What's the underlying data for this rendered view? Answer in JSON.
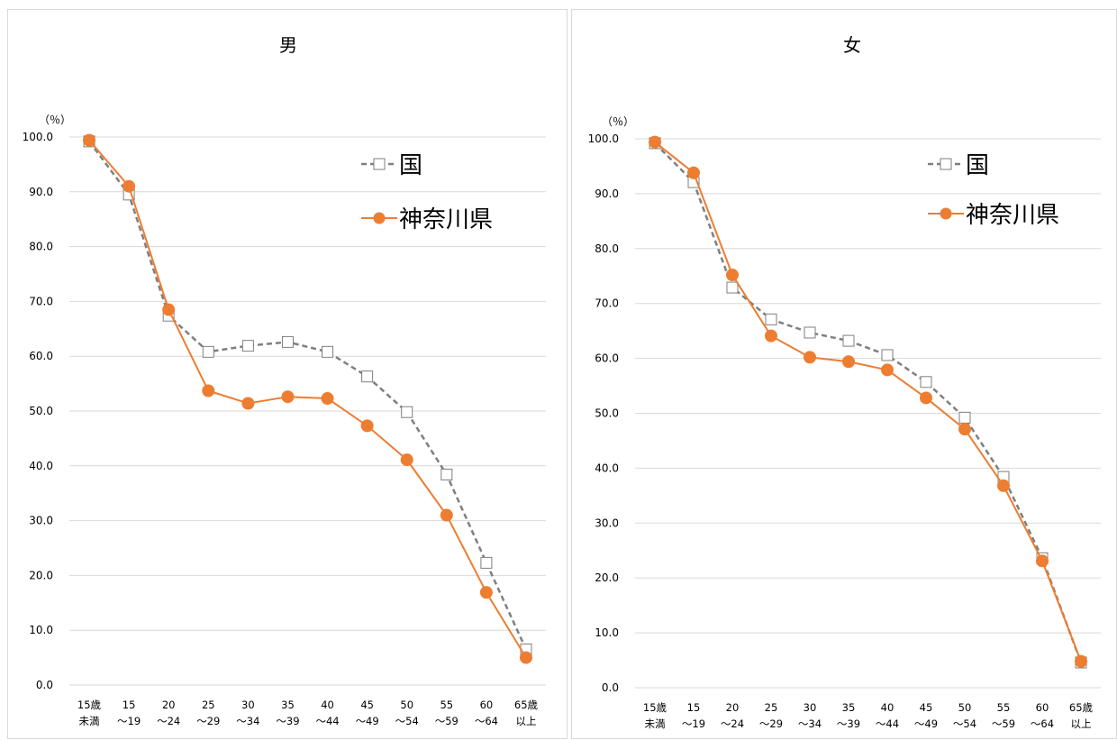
{
  "chart_data": [
    {
      "type": "line",
      "title": "男",
      "unit_label": "（％）",
      "xlabel": "",
      "ylabel": "",
      "ylim": [
        0,
        100
      ],
      "yticks": [
        "0.0",
        "10.0",
        "20.0",
        "30.0",
        "40.0",
        "50.0",
        "60.0",
        "70.0",
        "80.0",
        "90.0",
        "100.0"
      ],
      "categories": [
        [
          "15歳",
          "未満"
        ],
        [
          "15",
          "～19"
        ],
        [
          "20",
          "～24"
        ],
        [
          "25",
          "～29"
        ],
        [
          "30",
          "～34"
        ],
        [
          "35",
          "～39"
        ],
        [
          "40",
          "～44"
        ],
        [
          "45",
          "～49"
        ],
        [
          "50",
          "～54"
        ],
        [
          "55",
          "～59"
        ],
        [
          "60",
          "～64"
        ],
        [
          "65歳",
          "以上"
        ]
      ],
      "grid": true,
      "legend_position": "top-right",
      "series": [
        {
          "name": "国",
          "color": "#7f7f7f",
          "style": "dashed",
          "marker": "square-open",
          "values": [
            99.2,
            89.5,
            67.4,
            60.8,
            61.9,
            62.6,
            60.8,
            56.3,
            49.8,
            38.4,
            22.3,
            6.5
          ]
        },
        {
          "name": "神奈川県",
          "color": "#ed7d31",
          "style": "solid",
          "marker": "circle-filled",
          "values": [
            99.4,
            91.0,
            68.5,
            53.7,
            51.4,
            52.6,
            52.3,
            47.3,
            41.1,
            31.0,
            16.9,
            5.0
          ]
        }
      ]
    },
    {
      "type": "line",
      "title": "女",
      "unit_label": "（％）",
      "xlabel": "",
      "ylabel": "",
      "ylim": [
        0,
        100
      ],
      "yticks": [
        "0.0",
        "10.0",
        "20.0",
        "30.0",
        "40.0",
        "50.0",
        "60.0",
        "70.0",
        "80.0",
        "90.0",
        "100.0"
      ],
      "categories": [
        [
          "15歳",
          "未満"
        ],
        [
          "15",
          "～19"
        ],
        [
          "20",
          "～24"
        ],
        [
          "25",
          "～29"
        ],
        [
          "30",
          "～34"
        ],
        [
          "35",
          "～39"
        ],
        [
          "40",
          "～44"
        ],
        [
          "45",
          "～49"
        ],
        [
          "50",
          "～54"
        ],
        [
          "55",
          "～59"
        ],
        [
          "60",
          "～64"
        ],
        [
          "65歳",
          "以上"
        ]
      ],
      "grid": true,
      "legend_position": "top-right",
      "series": [
        {
          "name": "国",
          "color": "#7f7f7f",
          "style": "dashed",
          "marker": "square-open",
          "values": [
            99.2,
            92.1,
            72.9,
            67.1,
            64.7,
            63.2,
            60.6,
            55.7,
            49.2,
            38.4,
            23.6,
            4.6
          ]
        },
        {
          "name": "神奈川県",
          "color": "#ed7d31",
          "style": "solid",
          "marker": "circle-filled",
          "values": [
            99.4,
            93.8,
            75.2,
            64.1,
            60.2,
            59.4,
            57.9,
            52.8,
            47.1,
            36.8,
            23.1,
            4.8
          ]
        }
      ]
    }
  ]
}
